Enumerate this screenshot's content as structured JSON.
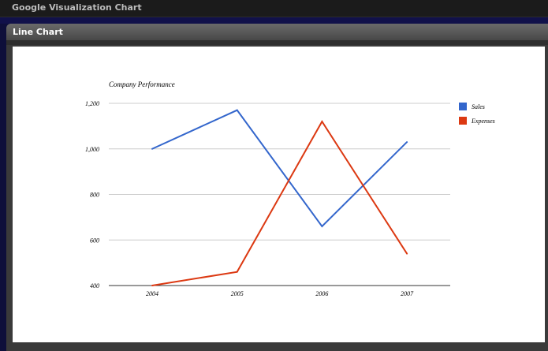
{
  "app": {
    "title": "Google Visualization Chart"
  },
  "panel": {
    "title": "Line Chart"
  },
  "colors": {
    "sales": "#3366cc",
    "expenses": "#dc3912"
  },
  "chart_data": {
    "type": "line",
    "title": "Company Performance",
    "categories": [
      "2004",
      "2005",
      "2006",
      "2007"
    ],
    "series": [
      {
        "name": "Sales",
        "values": [
          1000,
          1170,
          660,
          1030
        ]
      },
      {
        "name": "Expenses",
        "values": [
          400,
          460,
          1120,
          540
        ]
      }
    ],
    "y_ticks": [
      "400",
      "600",
      "800",
      "1,000",
      "1,200"
    ],
    "ylim": [
      400,
      1200
    ],
    "grid": true,
    "legend": "right"
  }
}
